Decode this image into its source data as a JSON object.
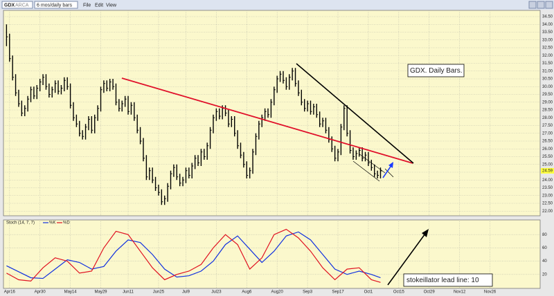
{
  "toolbar": {
    "symbol": "GDX",
    "exchange": "ARCA",
    "period": "6 mos/daily bars",
    "menu": [
      "File",
      "Edit",
      "View"
    ]
  },
  "chart_data": [
    {
      "type": "hlc",
      "annotation": "GDX. Daily Bars.",
      "color": "#000000",
      "xlim": [
        -1,
        175.5
      ],
      "ylim": [
        21.7,
        34.9
      ],
      "yticks": [
        {
          "value": 22,
          "label": "22.00"
        },
        {
          "value": 22.5,
          "label": "22.50"
        },
        {
          "value": 23,
          "label": "23.00"
        },
        {
          "value": 23.5,
          "label": "23.50"
        },
        {
          "value": 24,
          "label": "24.00"
        },
        {
          "value": 24.5,
          "label": "24.50"
        },
        {
          "value": 25,
          "label": "25.00"
        },
        {
          "value": 25.5,
          "label": "25.50"
        },
        {
          "value": 26,
          "label": "26.00"
        },
        {
          "value": 26.5,
          "label": "26.50"
        },
        {
          "value": 27,
          "label": "27.00"
        },
        {
          "value": 27.5,
          "label": "27.50"
        },
        {
          "value": 28,
          "label": "28.00"
        },
        {
          "value": 28.5,
          "label": "28.50"
        },
        {
          "value": 29,
          "label": "29.00"
        },
        {
          "value": 29.5,
          "label": "29.50"
        },
        {
          "value": 30,
          "label": "30.00"
        },
        {
          "value": 30.5,
          "label": "30.50"
        },
        {
          "value": 31,
          "label": "31.00"
        },
        {
          "value": 31.5,
          "label": "31.50"
        },
        {
          "value": 32,
          "label": "32.00"
        },
        {
          "value": 32.5,
          "label": "32.50"
        },
        {
          "value": 33,
          "label": "33.00"
        },
        {
          "value": 33.5,
          "label": "33.50"
        },
        {
          "value": 34,
          "label": "34.00"
        },
        {
          "value": 34.5,
          "label": "34.50"
        }
      ],
      "grid": true,
      "x": [
        0,
        1,
        2,
        3,
        4,
        5,
        6,
        7,
        8,
        9,
        10,
        11,
        12,
        13,
        14,
        15,
        16,
        17,
        18,
        19,
        20,
        21,
        22,
        23,
        24,
        25,
        26,
        27,
        28,
        29,
        30,
        31,
        32,
        33,
        34,
        35,
        36,
        37,
        38,
        39,
        40,
        41,
        42,
        43,
        44,
        45,
        46,
        47,
        48,
        49,
        50,
        51,
        52,
        53,
        54,
        55,
        56,
        57,
        58,
        59,
        60,
        61,
        62,
        63,
        64,
        65,
        66,
        67,
        68,
        69,
        70,
        71,
        72,
        73,
        74,
        75,
        76,
        77,
        78,
        79,
        80,
        81,
        82,
        83,
        84,
        85,
        86,
        87,
        88,
        89,
        90,
        91,
        92,
        93,
        94,
        95,
        96,
        97,
        98,
        99,
        100,
        101,
        102,
        103,
        104,
        105,
        106,
        107,
        108,
        109,
        110,
        111,
        112,
        113,
        114,
        115,
        116,
        117,
        118,
        119,
        120,
        121,
        122,
        123
      ],
      "high": [
        34.0,
        33.4,
        32.0,
        30.8,
        29.8,
        29.1,
        28.8,
        29.4,
        30.0,
        30.0,
        30.1,
        30.5,
        30.8,
        30.8,
        30.2,
        30.0,
        30.4,
        30.4,
        30.1,
        30.6,
        30.6,
        30.2,
        29.0,
        28.2,
        27.8,
        27.2,
        27.6,
        28.1,
        28.1,
        28.2,
        28.8,
        30.0,
        30.4,
        30.4,
        30.5,
        30.5,
        30.2,
        29.2,
        29.1,
        29.4,
        29.4,
        29.0,
        29.0,
        28.2,
        27.4,
        26.7,
        25.6,
        24.8,
        24.8,
        24.2,
        23.7,
        23.4,
        23.0,
        23.8,
        24.6,
        25.0,
        25.0,
        24.4,
        24.2,
        24.8,
        24.8,
        25.1,
        25.6,
        25.6,
        26.0,
        26.0,
        26.4,
        27.4,
        28.2,
        28.6,
        28.6,
        28.8,
        28.8,
        28.5,
        28.1,
        28.1,
        27.2,
        26.4,
        25.8,
        25.2,
        24.8,
        26.0,
        27.0,
        27.8,
        28.2,
        28.6,
        28.6,
        29.2,
        30.0,
        30.7,
        31.0,
        31.0,
        30.6,
        30.8,
        31.2,
        31.2,
        30.4,
        29.8,
        29.2,
        29.1,
        29.1,
        28.9,
        28.9,
        28.4,
        28.0,
        28.0,
        27.4,
        26.8,
        26.2,
        26.0,
        27.6,
        28.8,
        28.8,
        27.2,
        26.1,
        25.9,
        26.1,
        26.1,
        25.8,
        25.8,
        25.3,
        25.0,
        24.6,
        24.8
      ],
      "low": [
        32.6,
        31.6,
        30.4,
        29.4,
        28.7,
        28.1,
        28.1,
        28.4,
        29.0,
        29.2,
        29.2,
        29.7,
        30.1,
        29.8,
        29.3,
        29.3,
        29.6,
        29.5,
        29.5,
        29.7,
        29.8,
        28.6,
        27.8,
        27.4,
        26.8,
        26.6,
        26.6,
        27.2,
        27.0,
        27.0,
        27.8,
        28.4,
        29.6,
        29.7,
        29.7,
        29.8,
        28.8,
        28.4,
        28.4,
        28.7,
        28.2,
        28.2,
        27.8,
        27.0,
        26.3,
        25.2,
        24.0,
        24.0,
        23.8,
        23.3,
        23.0,
        22.4,
        22.4,
        22.6,
        23.4,
        24.2,
        24.0,
        23.6,
        23.6,
        23.8,
        24.1,
        24.1,
        24.7,
        24.9,
        24.9,
        25.3,
        25.3,
        26.0,
        27.0,
        27.8,
        27.9,
        27.9,
        28.1,
        27.4,
        27.4,
        26.8,
        26.0,
        25.4,
        24.8,
        24.1,
        24.1,
        24.4,
        25.6,
        26.6,
        27.4,
        27.8,
        28.0,
        28.0,
        28.8,
        29.6,
        30.3,
        30.2,
        29.8,
        29.8,
        30.4,
        30.0,
        29.4,
        28.8,
        28.4,
        28.4,
        28.2,
        28.2,
        28.0,
        27.4,
        27.4,
        27.0,
        26.4,
        25.8,
        25.2,
        25.2,
        25.6,
        27.2,
        26.8,
        25.7,
        25.3,
        25.3,
        25.5,
        25.2,
        25.2,
        24.9,
        24.6,
        24.2,
        24.1,
        24.1
      ],
      "close": [
        33.2,
        31.8,
        30.6,
        29.6,
        28.9,
        28.3,
        28.6,
        29.2,
        29.8,
        29.4,
        29.9,
        30.3,
        30.6,
        30.0,
        29.5,
        29.8,
        30.2,
        29.7,
        29.9,
        30.4,
        30.0,
        28.8,
        28.0,
        27.6,
        27.0,
        26.8,
        27.4,
        27.9,
        27.2,
        28.0,
        28.6,
        29.8,
        30.2,
        29.9,
        30.3,
        30.0,
        29.0,
        28.6,
        28.9,
        29.2,
        28.4,
        28.8,
        28.0,
        27.2,
        26.5,
        25.4,
        24.2,
        24.6,
        24.0,
        23.5,
        23.2,
        22.6,
        22.8,
        23.6,
        24.4,
        24.8,
        24.2,
        23.8,
        24.0,
        24.6,
        24.3,
        24.9,
        25.4,
        25.1,
        25.8,
        25.5,
        26.2,
        27.2,
        28.0,
        28.4,
        28.1,
        28.6,
        28.3,
        27.6,
        27.9,
        27.0,
        26.2,
        25.6,
        25.0,
        24.3,
        24.6,
        25.8,
        26.8,
        27.6,
        28.0,
        28.4,
        28.2,
        29.0,
        29.8,
        30.5,
        30.8,
        30.4,
        30.0,
        30.6,
        31.0,
        30.2,
        29.6,
        29.0,
        28.6,
        28.9,
        28.4,
        28.7,
        28.2,
        27.6,
        27.8,
        27.2,
        26.6,
        26.0,
        25.4,
        25.8,
        27.4,
        28.6,
        27.0,
        25.9,
        25.5,
        25.7,
        25.9,
        25.4,
        25.6,
        25.1,
        24.8,
        24.4,
        24.3,
        24.59
      ]
    },
    {
      "type": "line",
      "title": "Stoch (14, 7, 7)",
      "annotation": "stokeillator lead line: 10",
      "xlim": [
        -1,
        175.5
      ],
      "ylim": [
        0,
        100
      ],
      "yticks": [
        20,
        40,
        60,
        80
      ],
      "grid": true,
      "xticks": [
        {
          "value": 1,
          "label": "Apr16"
        },
        {
          "value": 11,
          "label": "Apr30"
        },
        {
          "value": 21,
          "label": "May14"
        },
        {
          "value": 31,
          "label": "May29"
        },
        {
          "value": 40,
          "label": "Jun11"
        },
        {
          "value": 50,
          "label": "Jun25"
        },
        {
          "value": 59,
          "label": "Jul9"
        },
        {
          "value": 69,
          "label": "Jul23"
        },
        {
          "value": 79,
          "label": "Aug6"
        },
        {
          "value": 89,
          "label": "Aug20"
        },
        {
          "value": 99,
          "label": "Sep3"
        },
        {
          "value": 109,
          "label": "Sep17"
        },
        {
          "value": 119,
          "label": "Oct1"
        },
        {
          "value": 129,
          "label": "Oct15"
        },
        {
          "value": 139,
          "label": "Oct29"
        },
        {
          "value": 149,
          "label": "Nov12"
        },
        {
          "value": 159,
          "label": "Nov26"
        }
      ],
      "x": [
        0,
        4,
        8,
        12,
        16,
        20,
        24,
        28,
        32,
        36,
        40,
        44,
        48,
        52,
        56,
        60,
        64,
        68,
        72,
        76,
        80,
        84,
        88,
        92,
        96,
        100,
        104,
        108,
        112,
        116,
        120,
        123
      ],
      "series": [
        {
          "name": "%K",
          "color": "#1030e0",
          "values": [
            33,
            24,
            15,
            14,
            28,
            42,
            38,
            28,
            32,
            55,
            72,
            68,
            50,
            28,
            16,
            18,
            25,
            40,
            65,
            78,
            58,
            38,
            55,
            78,
            84,
            72,
            50,
            28,
            20,
            25,
            20,
            15
          ]
        },
        {
          "name": "%D",
          "color": "#e01020",
          "values": [
            22,
            12,
            10,
            30,
            45,
            40,
            22,
            25,
            60,
            85,
            80,
            55,
            30,
            12,
            20,
            25,
            35,
            60,
            80,
            65,
            28,
            45,
            80,
            88,
            75,
            55,
            30,
            12,
            28,
            30,
            12,
            8
          ]
        }
      ]
    }
  ]
}
